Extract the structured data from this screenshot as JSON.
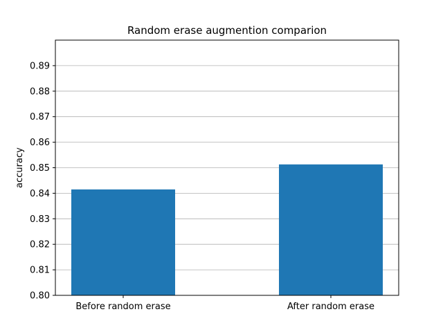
{
  "chart_data": {
    "type": "bar",
    "title": "Random erase augmention comparion",
    "xlabel": "",
    "ylabel": "accuracy",
    "categories": [
      "Before random erase",
      "After random erase"
    ],
    "values": [
      0.8415,
      0.8513
    ],
    "ylim": [
      0.8,
      0.9
    ],
    "yticks": [
      "0.80",
      "0.81",
      "0.82",
      "0.83",
      "0.84",
      "0.85",
      "0.86",
      "0.87",
      "0.88",
      "0.89"
    ],
    "grid": "y",
    "bar_color": "#1f77b4",
    "grid_color": "#b0b0b0"
  }
}
